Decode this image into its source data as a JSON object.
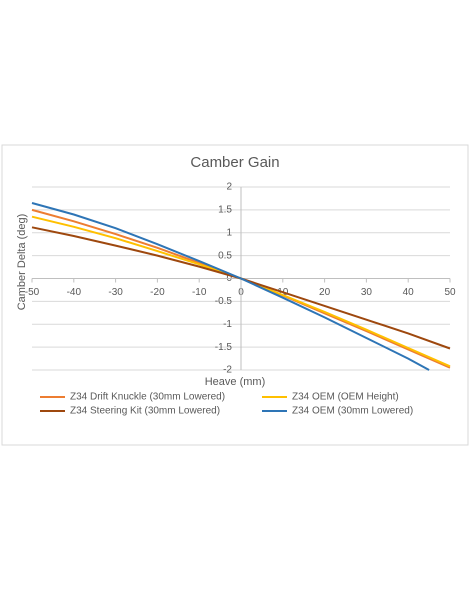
{
  "chart_data": {
    "type": "line",
    "title": "Camber Gain",
    "x_label": "Heave (mm)",
    "y_label": "Camber Delta (deg)",
    "xlim": [
      -50,
      50
    ],
    "xticks": [
      -50,
      -40,
      -30,
      -20,
      -10,
      0,
      10,
      20,
      30,
      40,
      50
    ],
    "ylim": [
      -2,
      2
    ],
    "yticks": [
      -2,
      -1.5,
      -1,
      -0.5,
      0,
      0.5,
      1,
      1.5,
      2
    ],
    "grid": true,
    "series": [
      {
        "name": "Z34 Drift Knuckle (30mm Lowered)",
        "color": "#ed7d31",
        "x": [
          -50,
          -40,
          -30,
          -20,
          -10,
          0,
          10,
          20,
          30,
          40,
          50
        ],
        "values": [
          1.5,
          1.25,
          0.97,
          0.67,
          0.34,
          0,
          -0.37,
          -0.76,
          -1.15,
          -1.55,
          -1.95
        ]
      },
      {
        "name": "Z34 OEM (OEM Height)",
        "color": "#ffc000",
        "x": [
          -50,
          -40,
          -30,
          -20,
          -10,
          0,
          10,
          20,
          30,
          40,
          50
        ],
        "values": [
          1.35,
          1.13,
          0.88,
          0.6,
          0.31,
          0,
          -0.36,
          -0.73,
          -1.12,
          -1.52,
          -1.92
        ]
      },
      {
        "name": "Z34 Steering Kit (30mm Lowered)",
        "color": "#9e480e",
        "x": [
          -50,
          -40,
          -30,
          -20,
          -10,
          0,
          10,
          20,
          30,
          40,
          50
        ],
        "values": [
          1.12,
          0.93,
          0.72,
          0.5,
          0.26,
          0,
          -0.3,
          -0.6,
          -0.9,
          -1.2,
          -1.53
        ]
      },
      {
        "name": "Z34 OEM (30mm Lowered)",
        "color": "#2e75b6",
        "x": [
          -50,
          -40,
          -30,
          -20,
          -10,
          0,
          10,
          20,
          30,
          40,
          45
        ],
        "values": [
          1.65,
          1.4,
          1.1,
          0.75,
          0.38,
          0,
          -0.42,
          -0.85,
          -1.3,
          -1.75,
          -2
        ]
      }
    ]
  }
}
